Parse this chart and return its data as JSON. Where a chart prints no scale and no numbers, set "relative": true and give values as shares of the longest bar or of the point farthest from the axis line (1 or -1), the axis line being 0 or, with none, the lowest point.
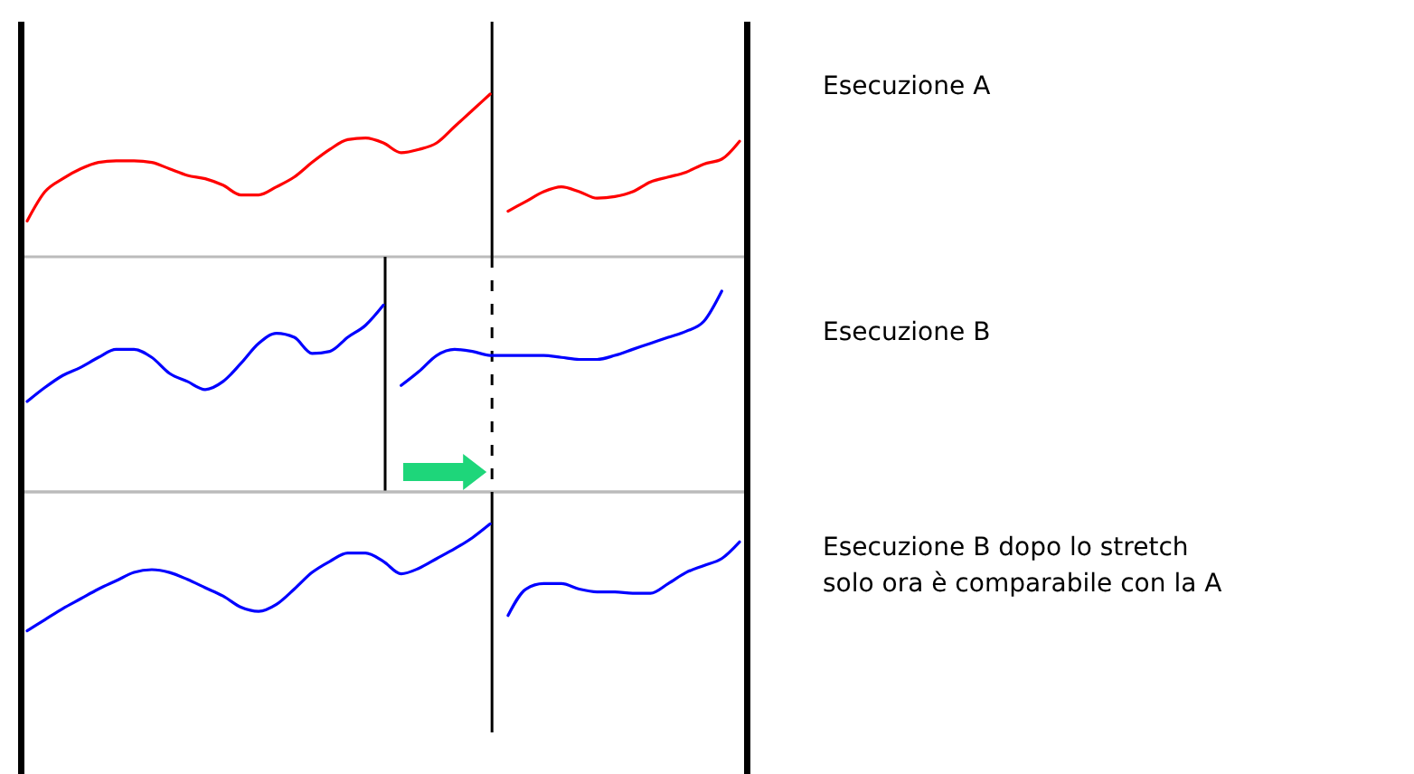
{
  "chart_data": [
    {
      "type": "line",
      "relative": true,
      "categories": [
        null,
        null,
        null,
        null,
        null,
        null,
        null,
        null,
        null,
        null,
        null,
        null,
        null,
        null,
        null,
        null,
        null,
        null,
        null,
        null,
        null,
        null,
        null,
        null,
        null,
        null,
        null,
        null,
        null,
        null,
        null,
        null,
        null,
        null,
        null,
        null,
        null,
        null,
        null,
        null,
        null
      ],
      "series": [
        {
          "color": "#ff0000",
          "values": [
            0.22,
            0.4,
            0.48,
            0.54,
            0.58,
            0.59,
            0.59,
            0.58,
            0.54,
            0.5,
            0.48,
            0.44,
            0.38,
            0.38,
            0.43,
            0.49,
            0.58,
            0.66,
            0.72,
            0.73,
            0.7,
            0.64,
            0.66,
            0.7,
            0.8,
            0.9,
            1.0,
            null,
            null,
            null,
            null,
            null,
            null,
            null,
            null,
            null,
            null,
            null,
            null,
            null,
            null
          ]
        },
        {
          "name": "Esecuzione A",
          "color": "#ff0000",
          "values": [
            null,
            null,
            null,
            null,
            null,
            null,
            null,
            null,
            null,
            null,
            null,
            null,
            null,
            null,
            null,
            null,
            null,
            null,
            null,
            null,
            null,
            null,
            null,
            null,
            null,
            null,
            null,
            0.28,
            0.34,
            0.4,
            0.43,
            0.4,
            0.36,
            0.37,
            0.4,
            0.46,
            0.49,
            0.52,
            0.57,
            0.6,
            0.71
          ]
        }
      ]
    },
    {
      "type": "line",
      "relative": true,
      "categories": [
        null,
        null,
        null,
        null,
        null,
        null,
        null,
        null,
        null,
        null,
        null,
        null,
        null,
        null,
        null,
        null,
        null,
        null,
        null,
        null,
        null,
        null,
        null,
        null,
        null,
        null,
        null,
        null,
        null,
        null,
        null,
        null,
        null,
        null,
        null,
        null,
        null,
        null,
        null,
        null,
        null
      ],
      "series": [
        {
          "color": "#0000ff",
          "values": [
            0.45,
            0.52,
            0.58,
            0.62,
            0.67,
            0.71,
            0.71,
            0.67,
            0.59,
            0.55,
            0.51,
            0.55,
            0.64,
            0.74,
            0.79,
            0.77,
            0.69,
            0.7,
            0.77,
            0.83,
            0.93,
            null,
            null,
            null,
            null,
            null,
            null,
            null,
            null,
            null,
            null,
            null,
            null,
            null,
            null,
            null,
            null,
            null,
            null,
            null,
            null
          ]
        },
        {
          "name": "Esecuzione B",
          "color": "#0000ff",
          "values": [
            null,
            null,
            null,
            null,
            null,
            null,
            null,
            null,
            null,
            null,
            null,
            null,
            null,
            null,
            null,
            null,
            null,
            null,
            null,
            null,
            null,
            0.53,
            0.6,
            0.68,
            0.71,
            0.7,
            0.68,
            0.68,
            0.68,
            0.68,
            0.67,
            0.66,
            0.66,
            0.68,
            0.71,
            0.74,
            0.77,
            0.8,
            0.85,
            1.0,
            null
          ]
        }
      ]
    },
    {
      "type": "line",
      "relative": true,
      "categories": [
        null,
        null,
        null,
        null,
        null,
        null,
        null,
        null,
        null,
        null,
        null,
        null,
        null,
        null,
        null,
        null,
        null,
        null,
        null,
        null,
        null,
        null,
        null,
        null,
        null,
        null,
        null,
        null,
        null,
        null,
        null,
        null,
        null,
        null,
        null,
        null,
        null,
        null,
        null,
        null,
        null
      ],
      "series": [
        {
          "color": "#0000ff",
          "values": [
            -1.0,
            -0.92,
            -0.84,
            -0.77,
            -0.7,
            -0.64,
            -0.58,
            -0.56,
            -0.58,
            -0.63,
            -0.69,
            -0.75,
            -0.83,
            -0.86,
            -0.81,
            -0.7,
            -0.58,
            -0.5,
            -0.44,
            -0.44,
            -0.5,
            -0.59,
            -0.55,
            -0.48,
            -0.41,
            -0.33,
            -0.23,
            null,
            null,
            null,
            null,
            null,
            null,
            null,
            null,
            null,
            null,
            null,
            null,
            null,
            null
          ]
        },
        {
          "name": "Esecuzione B dopo lo stretch\nsolo ora è comparabile con la A",
          "color": "#0000ff",
          "values": [
            null,
            null,
            null,
            null,
            null,
            null,
            null,
            null,
            null,
            null,
            null,
            null,
            null,
            null,
            null,
            null,
            null,
            null,
            null,
            null,
            null,
            null,
            null,
            null,
            null,
            null,
            null,
            -0.89,
            -0.7,
            -0.66,
            -0.66,
            -0.7,
            -0.72,
            -0.72,
            -0.73,
            -0.73,
            -0.66,
            -0.58,
            -0.53,
            -0.48,
            -0.36
          ]
        }
      ]
    }
  ]
}
